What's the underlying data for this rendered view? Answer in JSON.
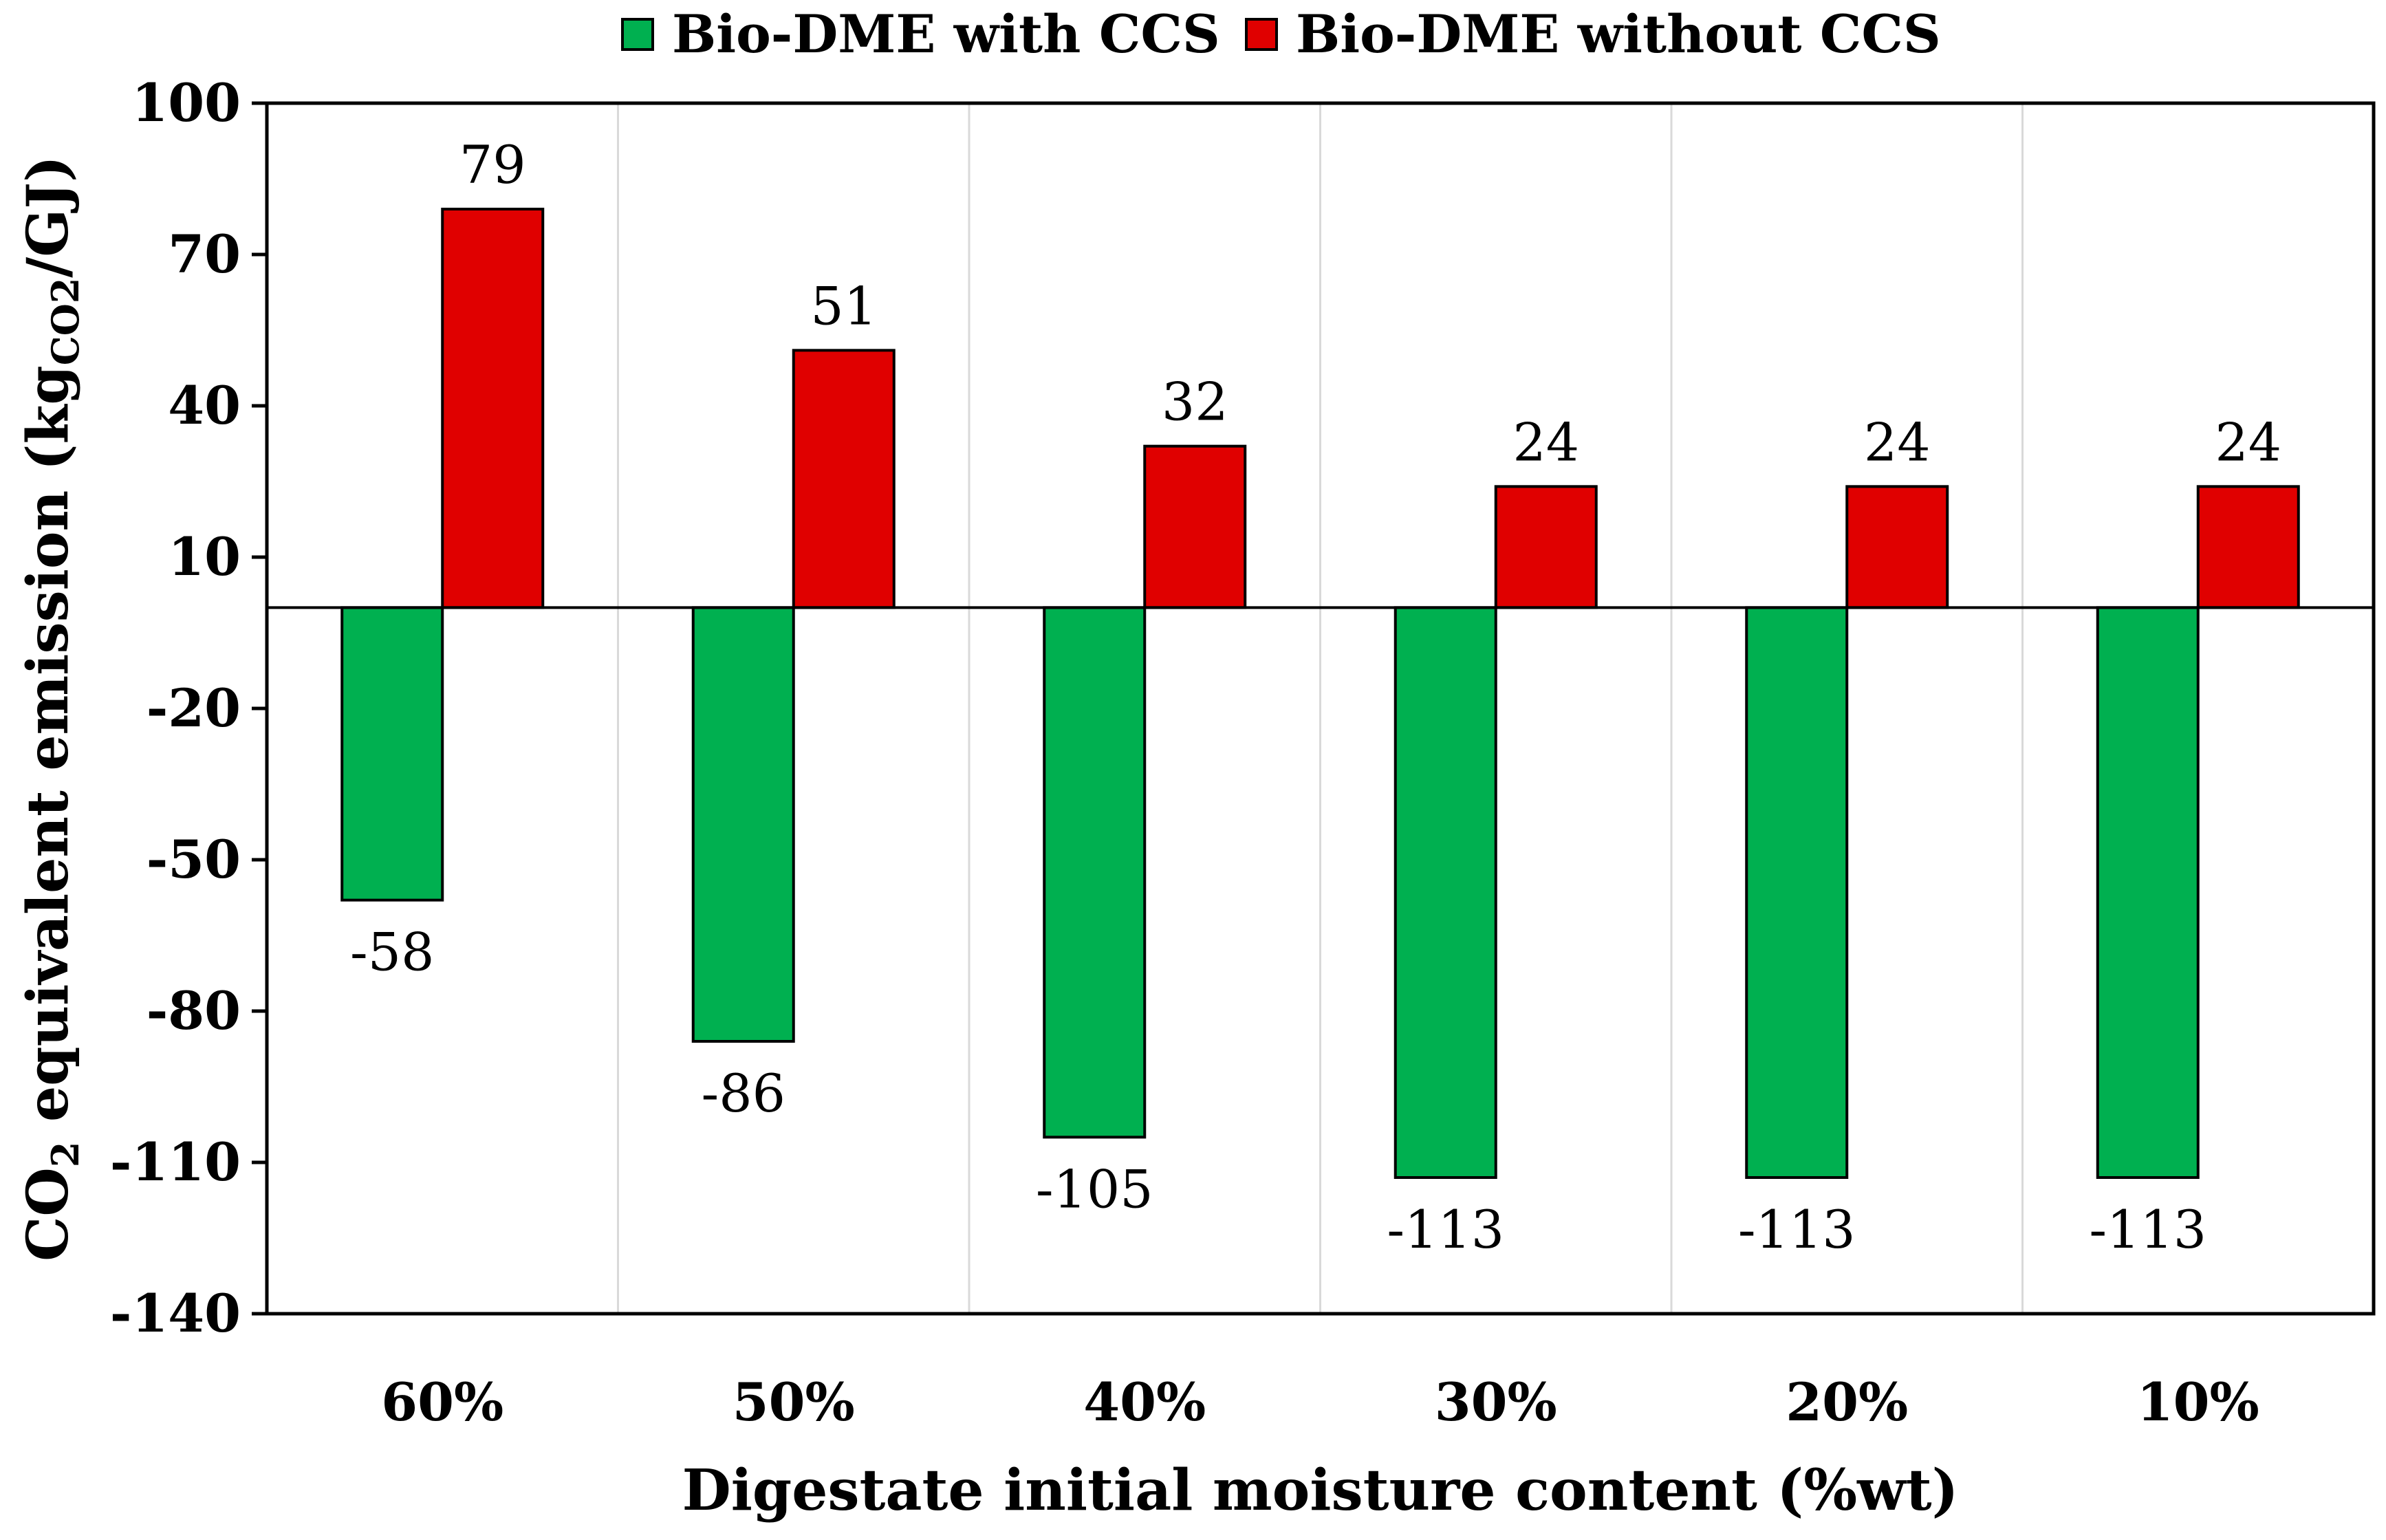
{
  "chart_data": {
    "type": "bar",
    "xlabel": "Digestate initial moisture content (%wt)",
    "ylabel": {
      "main": "CO",
      "main_sub": "2",
      "rest": " equivalent emission (kg",
      "unit_sub": "CO2",
      "tail": "/GJ)"
    },
    "categories": [
      "60%",
      "50%",
      "40%",
      "30%",
      "20%",
      "10%"
    ],
    "yticks": [
      100,
      70,
      40,
      10,
      -20,
      -50,
      -80,
      -110,
      -140
    ],
    "ylim": [
      -140,
      100
    ],
    "grid": {
      "vertical_separators": true,
      "horizontal": false
    },
    "legend_position": "top-center",
    "series": [
      {
        "name": "Bio-DME with CCS",
        "color": "#00b050",
        "values": [
          -58,
          -86,
          -105,
          -113,
          -113,
          -113
        ],
        "labels": [
          "-58",
          "-86",
          "-105",
          "-113",
          "-113",
          "-113"
        ]
      },
      {
        "name": "Bio-DME without CCS",
        "color": "#e00000",
        "values": [
          79,
          51,
          32,
          24,
          24,
          24
        ],
        "labels": [
          "79",
          "51",
          "32",
          "24",
          "24",
          "24"
        ]
      }
    ]
  }
}
